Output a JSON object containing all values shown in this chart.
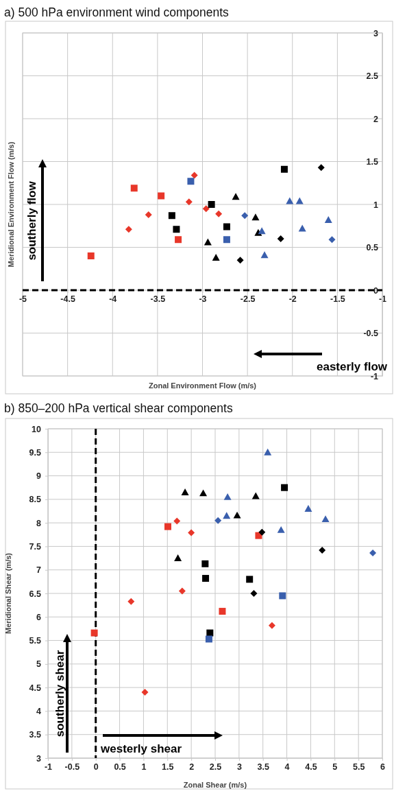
{
  "chart_data": [
    {
      "type": "scatter",
      "title": "a) 500 hPa environment wind components",
      "xlabel": "Zonal Environment Flow (m/s)",
      "ylabel": "Meridional Environment Flow (m/s)",
      "xlim": [
        -5,
        -1
      ],
      "xticks": [
        -5,
        -4.5,
        -4,
        -3.5,
        -3,
        -2.5,
        -2,
        -1.5,
        -1
      ],
      "ylim": [
        -1,
        3
      ],
      "yticks": [
        -1,
        -0.5,
        0,
        0.5,
        1,
        1.5,
        2,
        2.5,
        3
      ],
      "grid": true,
      "ref_lines": [
        {
          "axis": "y",
          "value": 0,
          "color": "#000000",
          "line_style": "dashed"
        }
      ],
      "annotations": [
        "southerly flow",
        "easterly flow"
      ],
      "series": [
        {
          "color": "#e8372a",
          "marker": "square",
          "x": [
            -4.24,
            -3.76,
            -3.46,
            -3.27
          ],
          "values": [
            0.4,
            1.19,
            1.1,
            0.59
          ]
        },
        {
          "color": "#e8372a",
          "marker": "diamond",
          "x": [
            -3.82,
            -3.6,
            -3.15,
            -3.09,
            -2.96,
            -2.82
          ],
          "values": [
            0.71,
            0.88,
            1.03,
            1.34,
            0.95,
            0.89
          ]
        },
        {
          "color": "#000000",
          "marker": "square",
          "x": [
            -3.34,
            -3.29,
            -2.9,
            -2.73,
            -2.09
          ],
          "values": [
            0.87,
            0.71,
            1.0,
            0.74,
            1.41
          ]
        },
        {
          "color": "#000000",
          "marker": "triangle",
          "x": [
            -2.94,
            -2.85,
            -2.63,
            -2.41,
            -2.38
          ],
          "values": [
            0.56,
            0.38,
            1.09,
            0.85,
            0.67
          ]
        },
        {
          "color": "#000000",
          "marker": "diamond",
          "x": [
            -2.58,
            -2.13,
            -1.68
          ],
          "values": [
            0.35,
            0.6,
            1.43
          ]
        },
        {
          "color": "#3a5fad",
          "marker": "square",
          "x": [
            -3.13,
            -2.73
          ],
          "values": [
            1.27,
            0.59
          ]
        },
        {
          "color": "#3a5fad",
          "marker": "diamond",
          "x": [
            -2.53,
            -1.56
          ],
          "values": [
            0.87,
            0.59
          ]
        },
        {
          "color": "#3a5fad",
          "marker": "triangle",
          "x": [
            -2.34,
            -2.31,
            -2.03,
            -1.92,
            -1.89,
            -1.6
          ],
          "values": [
            0.69,
            0.41,
            1.04,
            1.04,
            0.72,
            0.82
          ]
        }
      ]
    },
    {
      "type": "scatter",
      "title": "b) 850–200 hPa vertical shear components",
      "xlabel": "Zonal Shear (m/s)",
      "ylabel": "Meridional Shear (m/s)",
      "xlim": [
        -1,
        6
      ],
      "xticks": [
        -1,
        -0.5,
        0,
        0.5,
        1,
        1.5,
        2,
        2.5,
        3,
        3.5,
        4,
        4.5,
        5,
        5.5,
        6
      ],
      "ylim": [
        3,
        10
      ],
      "yticks": [
        3,
        3.5,
        4,
        4.5,
        5,
        5.5,
        6,
        6.5,
        7,
        7.5,
        8,
        8.5,
        9,
        9.5,
        10
      ],
      "grid": true,
      "ref_lines": [
        {
          "axis": "x",
          "value": 0,
          "color": "#000000",
          "line_style": "dashed"
        }
      ],
      "annotations": [
        "southerly shear",
        "westerly shear"
      ],
      "series": [
        {
          "color": "#e8372a",
          "marker": "square",
          "x": [
            -0.03,
            1.51,
            2.65,
            3.41
          ],
          "values": [
            5.66,
            7.92,
            6.12,
            7.73
          ]
        },
        {
          "color": "#e8372a",
          "marker": "diamond",
          "x": [
            0.74,
            1.03,
            1.7,
            1.81,
            2.0,
            3.69
          ],
          "values": [
            6.33,
            4.4,
            8.04,
            6.55,
            7.79,
            5.82
          ]
        },
        {
          "color": "#000000",
          "marker": "square",
          "x": [
            2.29,
            2.3,
            2.39,
            3.22,
            3.95
          ],
          "values": [
            7.13,
            6.82,
            5.66,
            6.8,
            8.75
          ]
        },
        {
          "color": "#000000",
          "marker": "triangle",
          "x": [
            1.72,
            1.87,
            2.25,
            2.96,
            3.35
          ],
          "values": [
            7.25,
            8.65,
            8.63,
            8.16,
            8.57
          ]
        },
        {
          "color": "#000000",
          "marker": "diamond",
          "x": [
            3.31,
            3.48,
            4.74
          ],
          "values": [
            6.5,
            7.8,
            7.42
          ]
        },
        {
          "color": "#3a5fad",
          "marker": "square",
          "x": [
            2.37,
            3.91
          ],
          "values": [
            5.53,
            6.45
          ]
        },
        {
          "color": "#3a5fad",
          "marker": "diamond",
          "x": [
            2.56,
            5.8
          ],
          "values": [
            8.05,
            7.36
          ]
        },
        {
          "color": "#3a5fad",
          "marker": "triangle",
          "x": [
            2.74,
            2.76,
            3.6,
            3.88,
            4.45,
            4.81
          ],
          "values": [
            8.15,
            8.55,
            9.5,
            7.85,
            8.3,
            8.08
          ]
        }
      ]
    }
  ]
}
